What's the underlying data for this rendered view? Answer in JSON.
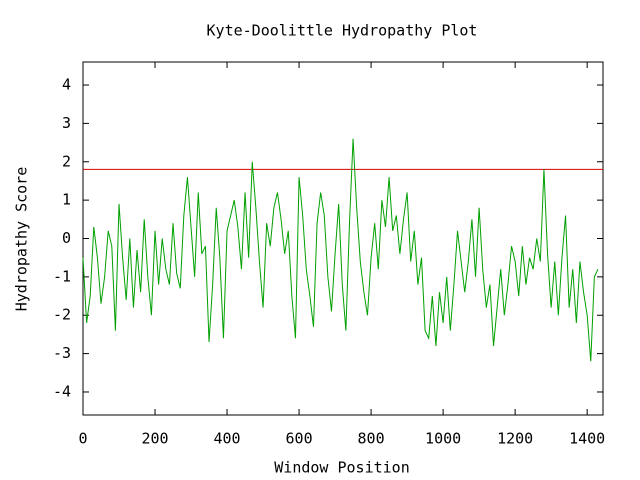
{
  "chart_data": {
    "type": "line",
    "title": "Kyte-Doolittle Hydropathy Plot",
    "x_label": "Window Position",
    "y_label": "Hydropathy Score",
    "x": [
      0,
      10,
      20,
      30,
      40,
      50,
      60,
      70,
      80,
      90,
      100,
      110,
      120,
      130,
      140,
      150,
      160,
      170,
      180,
      190,
      200,
      210,
      220,
      230,
      240,
      250,
      260,
      270,
      280,
      290,
      300,
      310,
      320,
      330,
      340,
      350,
      360,
      370,
      380,
      390,
      400,
      410,
      420,
      430,
      440,
      450,
      460,
      470,
      480,
      490,
      500,
      510,
      520,
      530,
      540,
      550,
      560,
      570,
      580,
      590,
      600,
      610,
      620,
      630,
      640,
      650,
      660,
      670,
      680,
      690,
      700,
      710,
      720,
      730,
      740,
      750,
      760,
      770,
      780,
      790,
      800,
      810,
      820,
      830,
      840,
      850,
      860,
      870,
      880,
      890,
      900,
      910,
      920,
      930,
      940,
      950,
      960,
      970,
      980,
      990,
      1000,
      1010,
      1020,
      1030,
      1040,
      1050,
      1060,
      1070,
      1080,
      1090,
      1100,
      1110,
      1120,
      1130,
      1140,
      1150,
      1160,
      1170,
      1180,
      1190,
      1200,
      1210,
      1220,
      1230,
      1240,
      1250,
      1260,
      1270,
      1280,
      1290,
      1300,
      1310,
      1320,
      1330,
      1340,
      1350,
      1360,
      1370,
      1380,
      1390,
      1400,
      1410,
      1420,
      1430
    ],
    "series": [
      {
        "color": "#00a000",
        "values": [
          -0.5,
          -2.2,
          -1.5,
          0.3,
          -0.5,
          -1.7,
          -1.0,
          0.2,
          -0.2,
          -2.4,
          0.9,
          -0.5,
          -1.6,
          0.0,
          -1.8,
          -0.3,
          -1.4,
          0.5,
          -1.0,
          -2.0,
          0.2,
          -1.2,
          0.0,
          -0.8,
          -1.2,
          0.4,
          -0.9,
          -1.3,
          0.6,
          1.6,
          0.3,
          -1.0,
          1.2,
          -0.4,
          -0.2,
          -2.7,
          -1.2,
          0.8,
          -0.5,
          -2.6,
          0.2,
          0.6,
          1.0,
          0.3,
          -0.8,
          1.2,
          -0.5,
          2.0,
          0.8,
          -0.6,
          -1.8,
          0.4,
          -0.2,
          0.8,
          1.2,
          0.5,
          -0.4,
          0.2,
          -1.5,
          -2.6,
          1.6,
          0.6,
          -0.8,
          -1.5,
          -2.3,
          0.4,
          1.2,
          0.6,
          -1.0,
          -1.9,
          -0.4,
          0.9,
          -1.2,
          -2.4,
          0.4,
          2.6,
          0.8,
          -0.6,
          -1.4,
          -2.0,
          -0.5,
          0.4,
          -0.8,
          1.0,
          0.3,
          1.6,
          0.2,
          0.6,
          -0.4,
          0.5,
          1.2,
          -0.6,
          0.2,
          -1.2,
          -0.5,
          -2.4,
          -2.6,
          -1.5,
          -2.8,
          -1.4,
          -2.2,
          -1.0,
          -2.4,
          -1.2,
          0.2,
          -0.6,
          -1.4,
          -0.6,
          0.5,
          -1.0,
          0.8,
          -0.8,
          -1.8,
          -1.2,
          -2.8,
          -1.8,
          -0.8,
          -2.0,
          -1.2,
          -0.2,
          -0.6,
          -1.5,
          -0.2,
          -1.2,
          -0.5,
          -0.8,
          0.0,
          -0.6,
          1.8,
          -0.4,
          -1.8,
          -0.6,
          -2.0,
          -0.5,
          0.6,
          -1.8,
          -0.8,
          -2.2,
          -0.6,
          -1.4,
          -2.0,
          -3.2,
          -1.0,
          -0.8
        ]
      }
    ],
    "threshold": 1.8,
    "threshold_color": "#e00000",
    "xlim": [
      0,
      1444
    ],
    "xticks": [
      0,
      200,
      400,
      600,
      800,
      1000,
      1200,
      1400
    ],
    "ylim": [
      -4.6,
      4.6
    ],
    "yticks": [
      -4,
      -3,
      -2,
      -1,
      0,
      1,
      2,
      3,
      4
    ],
    "grid": false
  }
}
